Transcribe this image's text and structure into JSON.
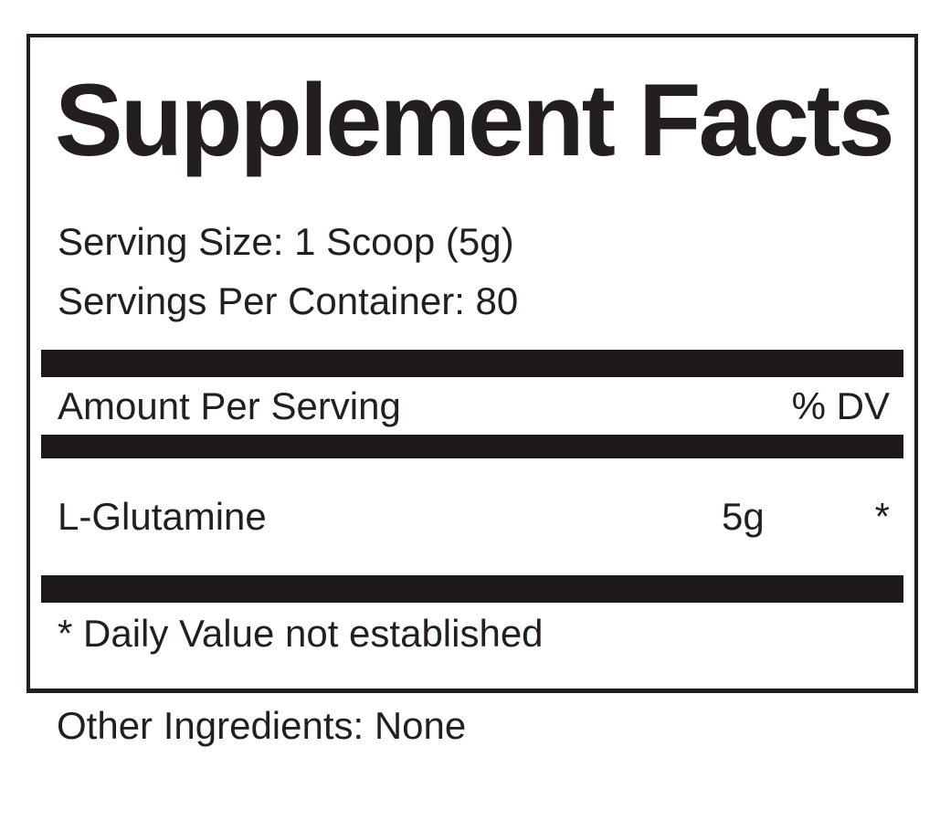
{
  "label": {
    "title": "Supplement Facts",
    "serving_size": "Serving Size: 1 Scoop (5g)",
    "servings_per_container": "Servings Per Container: 80",
    "amount_per_serving_header": "Amount Per Serving",
    "percent_dv_header": "% DV",
    "ingredients": [
      {
        "name": "L-Glutamine",
        "amount": "5g",
        "daily_value": "*"
      }
    ],
    "footnote": "* Daily Value not established",
    "other_ingredients": "Other Ingredients: None",
    "colors": {
      "text": "#231f20",
      "divider_bar": "#1d191a",
      "border": "#231f20",
      "background": "#ffffff"
    }
  }
}
